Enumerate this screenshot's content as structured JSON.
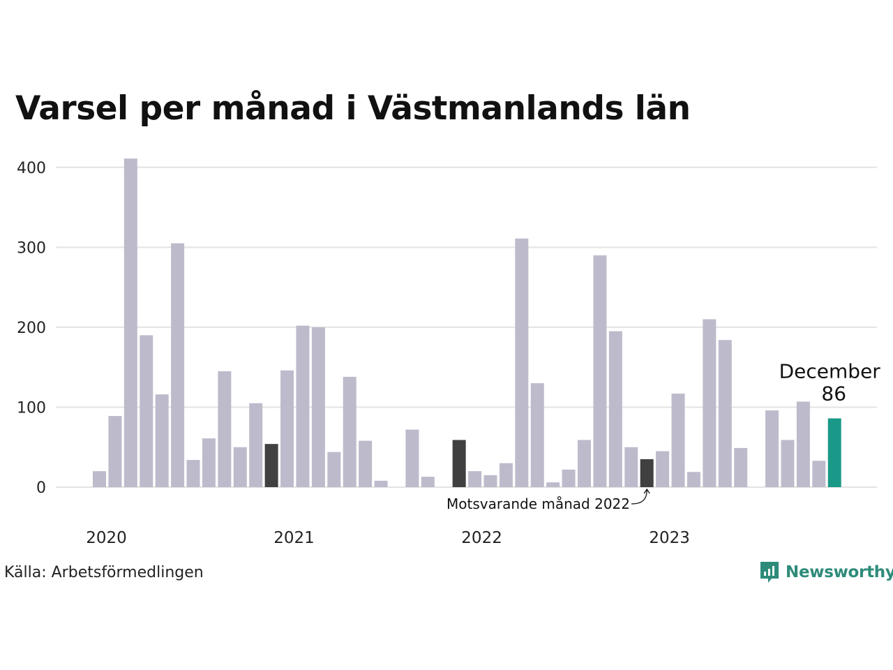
{
  "title": "Varsel per månad i Västmanlands län",
  "source": "Källa: Arbetsförmedlingen",
  "brand": {
    "name": "Newsworthy",
    "icon": "newsworthy-logo-icon"
  },
  "colors": {
    "bar": "#bdbbcb",
    "compare": "#404040",
    "highlight": "#1a9988",
    "grid": "#e3e3e3",
    "brand": "#2e8b7a"
  },
  "chart_data": {
    "type": "bar",
    "title": "Varsel per månad i Västmanlands län",
    "xlabel": "",
    "ylabel": "",
    "ylim": [
      0,
      420
    ],
    "yticks": [
      0,
      100,
      200,
      300,
      400
    ],
    "xtick_labels": [
      "2020",
      "2021",
      "2022",
      "2023"
    ],
    "grid": true,
    "months": [
      "2020-01",
      "2020-02",
      "2020-03",
      "2020-04",
      "2020-05",
      "2020-06",
      "2020-07",
      "2020-08",
      "2020-09",
      "2020-10",
      "2020-11",
      "2020-12",
      "2021-01",
      "2021-02",
      "2021-03",
      "2021-04",
      "2021-05",
      "2021-06",
      "2021-07",
      "2021-08",
      "2021-09",
      "2021-10",
      "2021-11",
      "2021-12",
      "2022-01",
      "2022-02",
      "2022-03",
      "2022-04",
      "2022-05",
      "2022-06",
      "2022-07",
      "2022-08",
      "2022-09",
      "2022-10",
      "2022-11",
      "2022-12",
      "2023-01",
      "2023-02",
      "2023-03",
      "2023-04",
      "2023-05",
      "2023-06",
      "2023-07",
      "2023-08",
      "2023-09",
      "2023-10",
      "2023-11",
      "2023-12"
    ],
    "values": [
      20,
      89,
      411,
      190,
      116,
      305,
      34,
      61,
      145,
      50,
      105,
      54,
      146,
      202,
      200,
      44,
      138,
      58,
      8,
      0,
      72,
      13,
      0,
      59,
      20,
      15,
      30,
      311,
      130,
      6,
      22,
      59,
      290,
      195,
      50,
      35,
      45,
      117,
      19,
      210,
      184,
      49,
      0,
      96,
      59,
      107,
      33,
      86
    ],
    "compare_months": [
      "2020-12",
      "2021-12",
      "2022-12"
    ],
    "highlight": {
      "month": "2023-12",
      "label": "December",
      "value": 86
    },
    "annotation": {
      "text": "Motsvarande månad 2022",
      "month": "2022-12"
    }
  }
}
